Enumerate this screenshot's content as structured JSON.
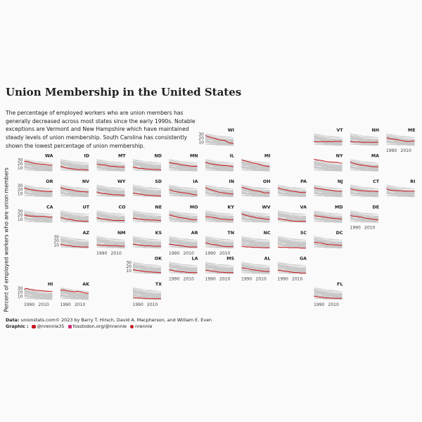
{
  "title": "Union Membership in the United States",
  "subtitle": "The percentage of employed workers who are union members has generally decreased across most states since the early 1990s. Notable exceptions are Vermont and New Hampshire which have maintained steady levels of union membership. South Carolina has consistently shown the lowest percentage of union membership.",
  "caption": {
    "data_label": "Data:",
    "data_text": "unionstats.com© 2023 by Barry  T. Hirsch, David  A. Macpherson, and William E.  Even",
    "graphic_label": "Graphic :",
    "twitter": "@nrennie35",
    "mastodon": "fosstodon.org/@nrennie",
    "github": "nrennie"
  },
  "colors": {
    "highlight": "#c9161c",
    "background_series": "#c8c8c8",
    "page_background": "#fafafa"
  },
  "chart_data": {
    "type": "line",
    "layout": "small multiples arranged as a geographic tile grid map of US states",
    "ylabel": "Percent of employed workers who are union members",
    "xlabel": "",
    "xlim": [
      1983,
      2022
    ],
    "ylim": [
      0,
      35
    ],
    "x_ticks": [
      1990,
      2010
    ],
    "y_ticks": [
      10,
      20,
      30
    ],
    "x": [
      1983,
      1987,
      1991,
      1995,
      1999,
      2003,
      2007,
      2011,
      2015,
      2019,
      2022
    ],
    "series": [
      {
        "state": "WA",
        "values": [
          27,
          26,
          24,
          22,
          21,
          20,
          19,
          19,
          18,
          17,
          17
        ]
      },
      {
        "state": "ID",
        "values": [
          14,
          12,
          10,
          9,
          8,
          7,
          6,
          6,
          6,
          5,
          5
        ]
      },
      {
        "state": "MT",
        "values": [
          20,
          18,
          17,
          17,
          15,
          14,
          14,
          13,
          13,
          12,
          12
        ]
      },
      {
        "state": "ND",
        "values": [
          12,
          11,
          9,
          9,
          8,
          7,
          7,
          6,
          6,
          6,
          5
        ]
      },
      {
        "state": "MN",
        "values": [
          23,
          22,
          21,
          20,
          18,
          17,
          16,
          15,
          14,
          14,
          14
        ]
      },
      {
        "state": "IL",
        "values": [
          24,
          22,
          20,
          19,
          18,
          17,
          16,
          16,
          15,
          14,
          13
        ]
      },
      {
        "state": "MI",
        "values": [
          30,
          28,
          26,
          24,
          22,
          21,
          19,
          17,
          15,
          14,
          13
        ]
      },
      {
        "state": "WI",
        "values": [
          27,
          24,
          22,
          20,
          18,
          16,
          15,
          14,
          9,
          8,
          7
        ]
      },
      {
        "state": "VT",
        "values": [
          12,
          11,
          12,
          12,
          11,
          12,
          11,
          12,
          12,
          12,
          12
        ]
      },
      {
        "state": "NH",
        "values": [
          12,
          11,
          11,
          11,
          10,
          10,
          10,
          10,
          10,
          10,
          10
        ]
      },
      {
        "state": "ME",
        "values": [
          21,
          19,
          18,
          17,
          16,
          15,
          13,
          12,
          12,
          13,
          13
        ]
      },
      {
        "state": "NY",
        "values": [
          32,
          30,
          29,
          28,
          26,
          25,
          25,
          24,
          24,
          22,
          22
        ]
      },
      {
        "state": "MA",
        "values": [
          25,
          22,
          20,
          18,
          17,
          16,
          15,
          14,
          13,
          13,
          13
        ]
      },
      {
        "state": "OR",
        "values": [
          24,
          22,
          20,
          19,
          18,
          17,
          16,
          16,
          15,
          15,
          15
        ]
      },
      {
        "state": "NV",
        "values": [
          25,
          23,
          21,
          20,
          19,
          17,
          16,
          15,
          15,
          14,
          14
        ]
      },
      {
        "state": "WY",
        "values": [
          14,
          12,
          11,
          10,
          9,
          8,
          7,
          7,
          7,
          6,
          6
        ]
      },
      {
        "state": "SD",
        "values": [
          11,
          10,
          9,
          8,
          7,
          6,
          6,
          5,
          5,
          4,
          4
        ]
      },
      {
        "state": "IA",
        "values": [
          20,
          17,
          15,
          14,
          13,
          12,
          11,
          10,
          8,
          7,
          7
        ]
      },
      {
        "state": "IN",
        "values": [
          25,
          22,
          19,
          17,
          15,
          13,
          12,
          11,
          10,
          9,
          9
        ]
      },
      {
        "state": "OH",
        "values": [
          26,
          24,
          22,
          20,
          18,
          17,
          16,
          14,
          12,
          12,
          12
        ]
      },
      {
        "state": "PA",
        "values": [
          24,
          22,
          20,
          19,
          17,
          16,
          15,
          14,
          13,
          13,
          13
        ]
      },
      {
        "state": "NJ",
        "values": [
          25,
          23,
          22,
          21,
          20,
          19,
          18,
          17,
          16,
          16,
          16
        ]
      },
      {
        "state": "CT",
        "values": [
          22,
          20,
          19,
          18,
          17,
          17,
          16,
          16,
          16,
          15,
          15
        ]
      },
      {
        "state": "RI",
        "values": [
          22,
          19,
          18,
          18,
          17,
          17,
          16,
          16,
          16,
          16,
          16
        ]
      },
      {
        "state": "CA",
        "values": [
          21,
          19,
          18,
          18,
          17,
          17,
          17,
          17,
          16,
          15,
          15
        ]
      },
      {
        "state": "UT",
        "values": [
          15,
          13,
          11,
          10,
          9,
          7,
          6,
          6,
          5,
          5,
          5
        ]
      },
      {
        "state": "CO",
        "values": [
          14,
          12,
          11,
          10,
          9,
          8,
          7,
          7,
          7,
          7,
          7
        ]
      },
      {
        "state": "NE",
        "values": [
          13,
          12,
          11,
          10,
          9,
          9,
          8,
          8,
          8,
          7,
          7
        ]
      },
      {
        "state": "MO",
        "values": [
          21,
          19,
          17,
          15,
          14,
          13,
          12,
          10,
          9,
          9,
          9
        ]
      },
      {
        "state": "KY",
        "values": [
          17,
          16,
          15,
          14,
          13,
          11,
          10,
          10,
          9,
          9,
          9
        ]
      },
      {
        "state": "WV",
        "values": [
          24,
          21,
          19,
          17,
          16,
          14,
          13,
          12,
          11,
          10,
          10
        ]
      },
      {
        "state": "VA",
        "values": [
          11,
          10,
          9,
          8,
          7,
          6,
          5,
          5,
          5,
          5,
          5
        ]
      },
      {
        "state": "MD",
        "values": [
          19,
          18,
          17,
          16,
          15,
          14,
          13,
          12,
          12,
          11,
          11
        ]
      },
      {
        "state": "DE",
        "values": [
          19,
          18,
          17,
          16,
          15,
          13,
          12,
          11,
          10,
          9,
          9
        ]
      },
      {
        "state": "AZ",
        "values": [
          11,
          10,
          9,
          8,
          7,
          6,
          6,
          5,
          5,
          5,
          5
        ]
      },
      {
        "state": "NM",
        "values": [
          10,
          9,
          9,
          9,
          8,
          8,
          8,
          8,
          7,
          7,
          7
        ]
      },
      {
        "state": "KS",
        "values": [
          12,
          11,
          10,
          9,
          8,
          8,
          8,
          7,
          7,
          7,
          7
        ]
      },
      {
        "state": "AR",
        "values": [
          12,
          11,
          10,
          9,
          8,
          7,
          6,
          5,
          5,
          5,
          5
        ]
      },
      {
        "state": "TN",
        "values": [
          16,
          14,
          12,
          11,
          10,
          8,
          7,
          6,
          6,
          6,
          6
        ]
      },
      {
        "state": "NC",
        "values": [
          7,
          6,
          5,
          5,
          4,
          4,
          4,
          3,
          3,
          3,
          3
        ]
      },
      {
        "state": "SC",
        "values": [
          5,
          4,
          4,
          4,
          3,
          3,
          3,
          3,
          2,
          2,
          2
        ]
      },
      {
        "state": "DC",
        "values": [
          17,
          16,
          15,
          14,
          12,
          11,
          11,
          10,
          10,
          9,
          9
        ]
      },
      {
        "state": "OK",
        "values": [
          12,
          11,
          10,
          9,
          8,
          7,
          7,
          6,
          6,
          5,
          5
        ]
      },
      {
        "state": "LA",
        "values": [
          12,
          11,
          9,
          8,
          7,
          7,
          6,
          5,
          5,
          5,
          5
        ]
      },
      {
        "state": "MS",
        "values": [
          11,
          10,
          9,
          8,
          7,
          6,
          6,
          5,
          5,
          5,
          5
        ]
      },
      {
        "state": "AL",
        "values": [
          17,
          16,
          15,
          13,
          12,
          11,
          10,
          9,
          8,
          8,
          8
        ]
      },
      {
        "state": "GA",
        "values": [
          11,
          10,
          9,
          8,
          7,
          6,
          5,
          5,
          4,
          4,
          4
        ]
      },
      {
        "state": "HI",
        "values": [
          28,
          29,
          27,
          26,
          25,
          24,
          24,
          23,
          22,
          22,
          22
        ]
      },
      {
        "state": "AK",
        "values": [
          25,
          26,
          24,
          23,
          22,
          21,
          22,
          21,
          19,
          18,
          18
        ]
      },
      {
        "state": "TX",
        "values": [
          7,
          6,
          6,
          5,
          5,
          4,
          4,
          4,
          4,
          4,
          4
        ]
      },
      {
        "state": "FL",
        "values": [
          10,
          9,
          8,
          7,
          6,
          6,
          5,
          5,
          5,
          5,
          5
        ]
      }
    ]
  }
}
